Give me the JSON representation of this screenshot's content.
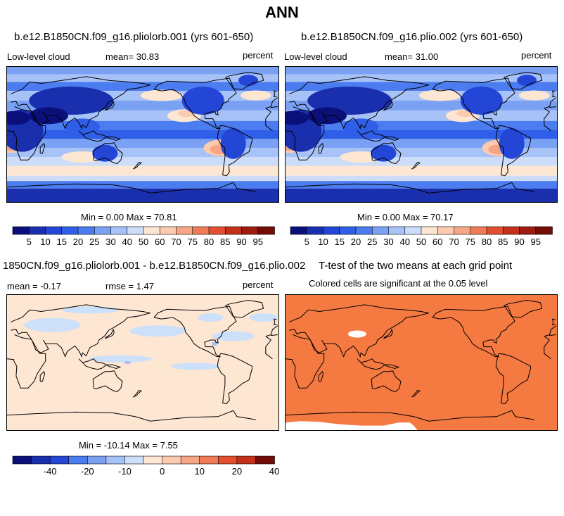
{
  "title": "ANN",
  "panels": [
    {
      "title": "b.e12.B1850CN.f09_g16.pliolorb.001 (yrs 601-650)",
      "left_label": "Low-level cloud",
      "stat_label": "mean=  30.83",
      "units": "percent",
      "minmax": "Min =    0.00 Max =   70.81",
      "colorbar_ticks": [
        "5",
        "10",
        "15",
        "20",
        "25",
        "30",
        "40",
        "50",
        "60",
        "70",
        "75",
        "80",
        "85",
        "90",
        "95"
      ]
    },
    {
      "title": "b.e12.B1850CN.f09_g16.plio.002 (yrs 601-650)",
      "left_label": "Low-level cloud",
      "stat_label": "mean=  31.00",
      "units": "percent",
      "minmax": "Min =    0.00 Max =   70.17",
      "colorbar_ticks": [
        "5",
        "10",
        "15",
        "20",
        "25",
        "30",
        "40",
        "50",
        "60",
        "70",
        "75",
        "80",
        "85",
        "90",
        "95"
      ]
    },
    {
      "title": "1850CN.f09_g16.pliolorb.001 - b.e12.B1850CN.f09_g16.plio.002",
      "left_label": "mean =  -0.17",
      "stat_label": "rmse =   1.47",
      "units": "percent",
      "minmax": "Min = -10.14 Max =   7.55",
      "colorbar_ticks": [
        "-40",
        "-20",
        "-10",
        "0",
        "10",
        "20",
        "40"
      ]
    },
    {
      "title": "T-test of the two means at each grid point",
      "subtitle": "Colored cells are significant at the 0.05 level"
    }
  ],
  "colors": {
    "abs_scale": [
      "#0a0f7a",
      "#1a2fae",
      "#2346d6",
      "#2f5fe8",
      "#4b7cf0",
      "#7aa1f4",
      "#a7c2f7",
      "#cddcf9",
      "#fde6d2",
      "#fbcbb0",
      "#f6a685",
      "#ef7b57",
      "#e2502f",
      "#c5301a",
      "#9e1b10",
      "#730c06"
    ],
    "diff_scale": [
      "#0a0f7a",
      "#1a2fae",
      "#2346d6",
      "#4b7cf0",
      "#7aa1f4",
      "#a7c2f7",
      "#cde0fa",
      "#fde6d2",
      "#fbcbb0",
      "#f6a685",
      "#ef7b57",
      "#e2502f",
      "#c5301a",
      "#730c06"
    ],
    "ttest_fill": "#f57a41"
  },
  "chart_data": [
    {
      "type": "heatmap",
      "title": "b.e12.B1850CN.f09_g16.pliolorb.001 (yrs 601-650)",
      "units": "percent",
      "mean": 30.83,
      "min": 0.0,
      "max": 70.81,
      "levels": [
        5,
        10,
        15,
        20,
        25,
        30,
        40,
        50,
        60,
        70,
        75,
        80,
        85,
        90,
        95
      ]
    },
    {
      "type": "heatmap",
      "title": "b.e12.B1850CN.f09_g16.plio.002 (yrs 601-650)",
      "units": "percent",
      "mean": 31.0,
      "min": 0.0,
      "max": 70.17,
      "levels": [
        5,
        10,
        15,
        20,
        25,
        30,
        40,
        50,
        60,
        70,
        75,
        80,
        85,
        90,
        95
      ]
    },
    {
      "type": "heatmap",
      "title": "1850CN.f09_g16.pliolorb.001 - b.e12.B1850CN.f09_g16.plio.002",
      "units": "percent",
      "mean": -0.17,
      "rmse": 1.47,
      "min": -10.14,
      "max": 7.55,
      "levels": [
        -40,
        -20,
        -10,
        0,
        10,
        20,
        40
      ]
    },
    {
      "type": "heatmap",
      "title": "T-test of the two means at each grid point",
      "significance_level": 0.05
    }
  ]
}
